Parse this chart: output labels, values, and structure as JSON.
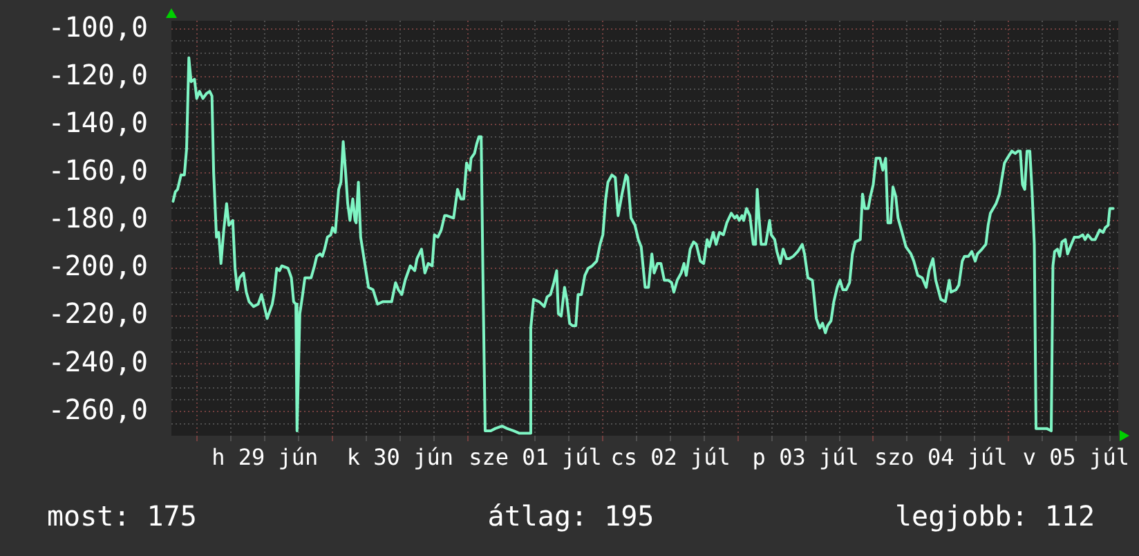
{
  "chart_data": {
    "type": "line",
    "xlim": [
      "--06-28T19:24",
      "--07-05T19:30"
    ],
    "xticks": [
      {
        "value": "--06-29T00:00",
        "label": null
      },
      {
        "value": "--06-29T06:00",
        "label": null
      },
      {
        "value": "--06-29T12:00",
        "label": "h 29 jún"
      },
      {
        "value": "--06-29T18:00",
        "label": null
      },
      {
        "value": "--06-30T00:00",
        "label": null
      },
      {
        "value": "--06-30T06:00",
        "label": null
      },
      {
        "value": "--06-30T12:00",
        "label": "k 30 jún"
      },
      {
        "value": "--06-30T18:00",
        "label": null
      },
      {
        "value": "--07-01T00:00",
        "label": null
      },
      {
        "value": "--07-01T06:00",
        "label": null
      },
      {
        "value": "--07-01T12:00",
        "label": "sze 01 júl"
      },
      {
        "value": "--07-01T18:00",
        "label": null
      },
      {
        "value": "--07-02T00:00",
        "label": null
      },
      {
        "value": "--07-02T06:00",
        "label": null
      },
      {
        "value": "--07-02T12:00",
        "label": "cs 02 júl"
      },
      {
        "value": "--07-02T18:00",
        "label": null
      },
      {
        "value": "--07-03T00:00",
        "label": null
      },
      {
        "value": "--07-03T06:00",
        "label": null
      },
      {
        "value": "--07-03T12:00",
        "label": "p 03 júl"
      },
      {
        "value": "--07-03T18:00",
        "label": null
      },
      {
        "value": "--07-04T00:00",
        "label": null
      },
      {
        "value": "--07-04T06:00",
        "label": null
      },
      {
        "value": "--07-04T12:00",
        "label": "szo 04 júl"
      },
      {
        "value": "--07-04T18:00",
        "label": null
      },
      {
        "value": "--07-05T00:00",
        "label": null
      },
      {
        "value": "--07-05T06:00",
        "label": null
      },
      {
        "value": "--07-05T12:00",
        "label": "v 05 júl"
      },
      {
        "value": "--07-05T18:00",
        "label": null
      }
    ],
    "ylim": [
      -270,
      -96.5
    ],
    "yticks": [
      {
        "value": -265,
        "label": null
      },
      {
        "value": -260,
        "label": "-260,0"
      },
      {
        "value": -255,
        "label": null
      },
      {
        "value": -250,
        "label": null
      },
      {
        "value": -245,
        "label": null
      },
      {
        "value": -240,
        "label": "-240,0"
      },
      {
        "value": -235,
        "label": null
      },
      {
        "value": -230,
        "label": null
      },
      {
        "value": -225,
        "label": null
      },
      {
        "value": -220,
        "label": "-220,0"
      },
      {
        "value": -215,
        "label": null
      },
      {
        "value": -210,
        "label": null
      },
      {
        "value": -205,
        "label": null
      },
      {
        "value": -200,
        "label": "-200,0"
      },
      {
        "value": -195,
        "label": null
      },
      {
        "value": -190,
        "label": null
      },
      {
        "value": -185,
        "label": null
      },
      {
        "value": -180,
        "label": "-180,0"
      },
      {
        "value": -175,
        "label": null
      },
      {
        "value": -170,
        "label": null
      },
      {
        "value": -165,
        "label": null
      },
      {
        "value": -160,
        "label": "-160,0"
      },
      {
        "value": -155,
        "label": null
      },
      {
        "value": -150,
        "label": null
      },
      {
        "value": -145,
        "label": null
      },
      {
        "value": -140,
        "label": "-140,0"
      },
      {
        "value": -135,
        "label": null
      },
      {
        "value": -130,
        "label": null
      },
      {
        "value": -125,
        "label": null
      },
      {
        "value": -120,
        "label": "-120,0"
      },
      {
        "value": -115,
        "label": null
      },
      {
        "value": -110,
        "label": null
      },
      {
        "value": -105,
        "label": null
      },
      {
        "value": -100,
        "label": "-100,0"
      }
    ],
    "grid": true,
    "series": [
      {
        "color": "#7ff5c4",
        "x": [
          "--06-28T19:42",
          "--06-28T20:06",
          "--06-28T20:30",
          "--06-28T21:06",
          "--06-28T21:42",
          "--06-28T22:06",
          "--06-28T22:30",
          "--06-28T22:54",
          "--06-28T23:30",
          "--06-28T23:54",
          "--06-29T00:24",
          "--06-29T01:00",
          "--06-29T01:36",
          "--06-29T02:12",
          "--06-29T02:36",
          "--06-29T02:54",
          "--06-29T03:24",
          "--06-29T03:48",
          "--06-29T04:12",
          "--06-29T04:42",
          "--06-29T05:12",
          "--06-29T05:36",
          "--06-29T06:18",
          "--06-29T06:42",
          "--06-29T07:06",
          "--06-29T07:30",
          "--06-29T08:12",
          "--06-29T08:42",
          "--06-29T09:12",
          "--06-29T10:00",
          "--06-29T10:48",
          "--06-29T11:24",
          "--06-29T11:54",
          "--06-29T12:24",
          "--06-29T13:18",
          "--06-29T13:36",
          "--06-29T14:06",
          "--06-29T14:36",
          "--06-29T15:00",
          "--06-29T16:06",
          "--06-29T16:42",
          "--06-29T17:06",
          "--06-29T17:30",
          "--06-29T17:42",
          "--06-29T18:12",
          "--06-29T18:42",
          "--06-29T19:06",
          "--06-29T19:36",
          "--06-29T20:12",
          "--06-29T20:48",
          "--06-29T21:12",
          "--06-29T21:48",
          "--06-29T22:12",
          "--06-29T22:36",
          "--06-29T23:06",
          "--06-29T23:42",
          "--06-30T00:00",
          "--06-30T00:30",
          "--06-30T01:06",
          "--06-30T01:30",
          "--06-30T01:54",
          "--06-30T02:18",
          "--06-30T02:42",
          "--06-30T03:06",
          "--06-30T03:36",
          "--06-30T04:00",
          "--06-30T04:12",
          "--06-30T04:36",
          "--06-30T05:00",
          "--06-30T05:36",
          "--06-30T06:00",
          "--06-30T06:24",
          "--06-30T07:12",
          "--06-30T08:00",
          "--06-30T08:54",
          "--06-30T09:42",
          "--06-30T10:30",
          "--06-30T11:12",
          "--06-30T11:42",
          "--06-30T12:18",
          "--06-30T12:54",
          "--06-30T13:48",
          "--06-30T14:36",
          "--06-30T15:00",
          "--06-30T15:48",
          "--06-30T16:24",
          "--06-30T17:00",
          "--06-30T17:42",
          "--06-30T18:06",
          "--06-30T18:42",
          "--06-30T19:18",
          "--06-30T19:54",
          "--06-30T20:18",
          "--06-30T21:30",
          "--06-30T22:12",
          "--06-30T22:48",
          "--06-30T23:18",
          "--06-30T23:48",
          "--07-01T00:24",
          "--07-01T00:36",
          "--07-01T01:12",
          "--07-01T01:36",
          "--07-01T02:00",
          "--07-01T02:24",
          "--07-01T02:42",
          "--07-01T03:06",
          "--07-01T04:06",
          "--07-01T04:54",
          "--07-01T06:06",
          "--07-01T07:00",
          "--07-01T08:12",
          "--07-01T09:12",
          "--07-01T11:00",
          "--07-01T11:12",
          "--07-01T11:42",
          "--07-01T12:42",
          "--07-01T13:36",
          "--07-01T14:06",
          "--07-01T14:42",
          "--07-01T15:18",
          "--07-01T15:48",
          "--07-01T16:06",
          "--07-01T16:36",
          "--07-01T17:12",
          "--07-01T17:36",
          "--07-01T18:06",
          "--07-01T18:36",
          "--07-01T19:12",
          "--07-01T19:36",
          "--07-01T20:12",
          "--07-01T20:48",
          "--07-01T21:24",
          "--07-01T22:06",
          "--07-01T22:54",
          "--07-01T23:30",
          "--07-02T00:00",
          "--07-02T00:30",
          "--07-02T00:54",
          "--07-02T01:36",
          "--07-02T02:12",
          "--07-02T02:42",
          "--07-02T03:24",
          "--07-02T04:06",
          "--07-02T04:24",
          "--07-02T05:00",
          "--07-02T05:42",
          "--07-02T06:18",
          "--07-02T06:48",
          "--07-02T07:30",
          "--07-02T08:06",
          "--07-02T08:42",
          "--07-02T09:06",
          "--07-02T09:42",
          "--07-02T10:18",
          "--07-02T10:54",
          "--07-02T11:36",
          "--07-02T12:12",
          "--07-02T12:36",
          "--07-02T13:12",
          "--07-02T13:54",
          "--07-02T14:24",
          "--07-02T14:48",
          "--07-02T15:30",
          "--07-02T16:06",
          "--07-02T16:36",
          "--07-02T17:18",
          "--07-02T17:54",
          "--07-02T18:30",
          "--07-02T18:54",
          "--07-02T19:36",
          "--07-02T20:06",
          "--07-02T20:42",
          "--07-02T21:24",
          "--07-02T22:00",
          "--07-02T22:48",
          "--07-02T23:24",
          "--07-02T23:48",
          "--07-03T00:12",
          "--07-03T00:42",
          "--07-03T01:00",
          "--07-03T01:30",
          "--07-03T02:06",
          "--07-03T02:42",
          "--07-03T03:06",
          "--07-03T03:24",
          "--07-03T03:42",
          "--07-03T04:06",
          "--07-03T04:54",
          "--07-03T05:36",
          "--07-03T05:54",
          "--07-03T06:30",
          "--07-03T06:54",
          "--07-03T07:30",
          "--07-03T08:00",
          "--07-03T08:36",
          "--07-03T09:06",
          "--07-03T09:48",
          "--07-03T10:36",
          "--07-03T11:24",
          "--07-03T11:48",
          "--07-03T12:24",
          "--07-03T13:12",
          "--07-03T13:54",
          "--07-03T14:30",
          "--07-03T15:00",
          "--07-03T15:30",
          "--07-03T15:54",
          "--07-03T16:30",
          "--07-03T17:00",
          "--07-03T17:36",
          "--07-03T18:06",
          "--07-03T18:36",
          "--07-03T19:12",
          "--07-03T19:48",
          "--07-03T20:18",
          "--07-03T20:48",
          "--07-03T21:42",
          "--07-03T22:06",
          "--07-03T22:30",
          "--07-03T23:06",
          "--07-03T23:30",
          "--07-04T00:00",
          "--07-04T00:30",
          "--07-04T01:12",
          "--07-04T01:42",
          "--07-04T02:12",
          "--07-04T02:36",
          "--07-04T03:06",
          "--07-04T03:30",
          "--07-04T04:00",
          "--07-04T04:24",
          "--07-04T05:00",
          "--07-04T05:48",
          "--07-04T06:42",
          "--07-04T07:12",
          "--07-04T07:54",
          "--07-04T08:42",
          "--07-04T09:24",
          "--07-04T09:54",
          "--07-04T10:36",
          "--07-04T11:06",
          "--07-04T12:00",
          "--07-04T12:48",
          "--07-04T13:30",
          "--07-04T13:48",
          "--07-04T14:42",
          "--07-04T15:12",
          "--07-04T15:48",
          "--07-04T16:12",
          "--07-04T16:54",
          "--07-04T17:30",
          "--07-04T18:06",
          "--07-04T18:30",
          "--07-04T19:18",
          "--07-04T20:00",
          "--07-04T20:24",
          "--07-04T20:48",
          "--07-04T21:48",
          "--07-04T22:24",
          "--07-04T22:48",
          "--07-04T23:18",
          "--07-04T23:48",
          "--07-05T00:36",
          "--07-05T01:12",
          "--07-05T01:42",
          "--07-05T02:06",
          "--07-05T02:30",
          "--07-05T02:54",
          "--07-05T03:18",
          "--07-05T03:48",
          "--07-05T04:12",
          "--07-05T04:36",
          "--07-05T04:54",
          "--07-05T06:00",
          "--07-05T06:48",
          "--07-05T07:36",
          "--07-05T07:54",
          "--07-05T08:12",
          "--07-05T08:42",
          "--07-05T09:06",
          "--07-05T09:30",
          "--07-05T10:06",
          "--07-05T10:30",
          "--07-05T11:00",
          "--07-05T11:42",
          "--07-05T12:30",
          "--07-05T13:12",
          "--07-05T13:36",
          "--07-05T14:06",
          "--07-05T14:48",
          "--07-05T15:24",
          "--07-05T16:12",
          "--07-05T16:48",
          "--07-05T17:12",
          "--07-05T17:42",
          "--07-05T18:00",
          "--07-05T18:36"
        ],
        "values": [
          -172,
          -168,
          -167,
          -161,
          -161,
          -150,
          -112,
          -122,
          -121,
          -129,
          -126,
          -129,
          -127,
          -126,
          -128,
          -160,
          -187,
          -185,
          -198,
          -184,
          -173,
          -182,
          -180,
          -200,
          -209,
          -204,
          -202,
          -210,
          -214,
          -216,
          -215,
          -211,
          -216,
          -221,
          -215,
          -211,
          -200,
          -201,
          -199,
          -200,
          -204,
          -214,
          -215,
          -268,
          -219,
          -211,
          -204,
          -204,
          -204,
          -199,
          -195,
          -194,
          -195,
          -192,
          -187,
          -186,
          -183,
          -185,
          -167,
          -164,
          -147,
          -159,
          -173,
          -180,
          -171,
          -180,
          -181,
          -164,
          -187,
          -196,
          -202,
          -208,
          -209,
          -215,
          -214,
          -214,
          -214,
          -206,
          -209,
          -211,
          -205,
          -199,
          -201,
          -196,
          -192,
          -202,
          -198,
          -199,
          -186,
          -187,
          -184,
          -178,
          -178,
          -179,
          -167,
          -171,
          -171,
          -156,
          -159,
          -154,
          -152,
          -148,
          -145,
          -145,
          -202,
          -268,
          -268,
          -267,
          -266,
          -267,
          -268,
          -269,
          -269,
          -225,
          -213,
          -214,
          -216,
          -212,
          -211,
          -206,
          -201,
          -219,
          -220,
          -208,
          -213,
          -223,
          -224,
          -224,
          -211,
          -211,
          -203,
          -200,
          -199,
          -197,
          -190,
          -186,
          -171,
          -164,
          -161,
          -162,
          -178,
          -169,
          -161,
          -162,
          -179,
          -182,
          -188,
          -191,
          -208,
          -208,
          -194,
          -202,
          -198,
          -198,
          -205,
          -205,
          -206,
          -210,
          -205,
          -202,
          -198,
          -203,
          -192,
          -189,
          -190,
          -197,
          -198,
          -188,
          -191,
          -185,
          -190,
          -185,
          -186,
          -181,
          -177,
          -179,
          -178,
          -180,
          -178,
          -180,
          -175,
          -178,
          -190,
          -190,
          -167,
          -178,
          -190,
          -190,
          -180,
          -186,
          -188,
          -193,
          -198,
          -192,
          -196,
          -196,
          -195,
          -193,
          -190,
          -194,
          -204,
          -205,
          -221,
          -225,
          -223,
          -227,
          -224,
          -222,
          -214,
          -208,
          -205,
          -209,
          -209,
          -206,
          -194,
          -189,
          -188,
          -169,
          -175,
          -175,
          -170,
          -165,
          -154,
          -154,
          -159,
          -154,
          -181,
          -181,
          -166,
          -170,
          -179,
          -184,
          -191,
          -194,
          -197,
          -203,
          -204,
          -208,
          -201,
          -196,
          -205,
          -213,
          -214,
          -205,
          -210,
          -209,
          -207,
          -197,
          -195,
          -195,
          -193,
          -197,
          -194,
          -192,
          -190,
          -182,
          -177,
          -173,
          -169,
          -163,
          -156,
          -154,
          -151,
          -152,
          -151,
          -151,
          -165,
          -167,
          -151,
          -151,
          -168,
          -190,
          -267,
          -267,
          -267,
          -268,
          -199,
          -193,
          -192,
          -195,
          -189,
          -188,
          -194,
          -191,
          -187,
          -187,
          -186,
          -188,
          -186,
          -188,
          -188,
          -184,
          -185,
          -183,
          -182,
          -175,
          -175
        ]
      }
    ],
    "annotations": [
      "most: 175",
      "átlag: 195",
      "legjobb: 112"
    ]
  }
}
